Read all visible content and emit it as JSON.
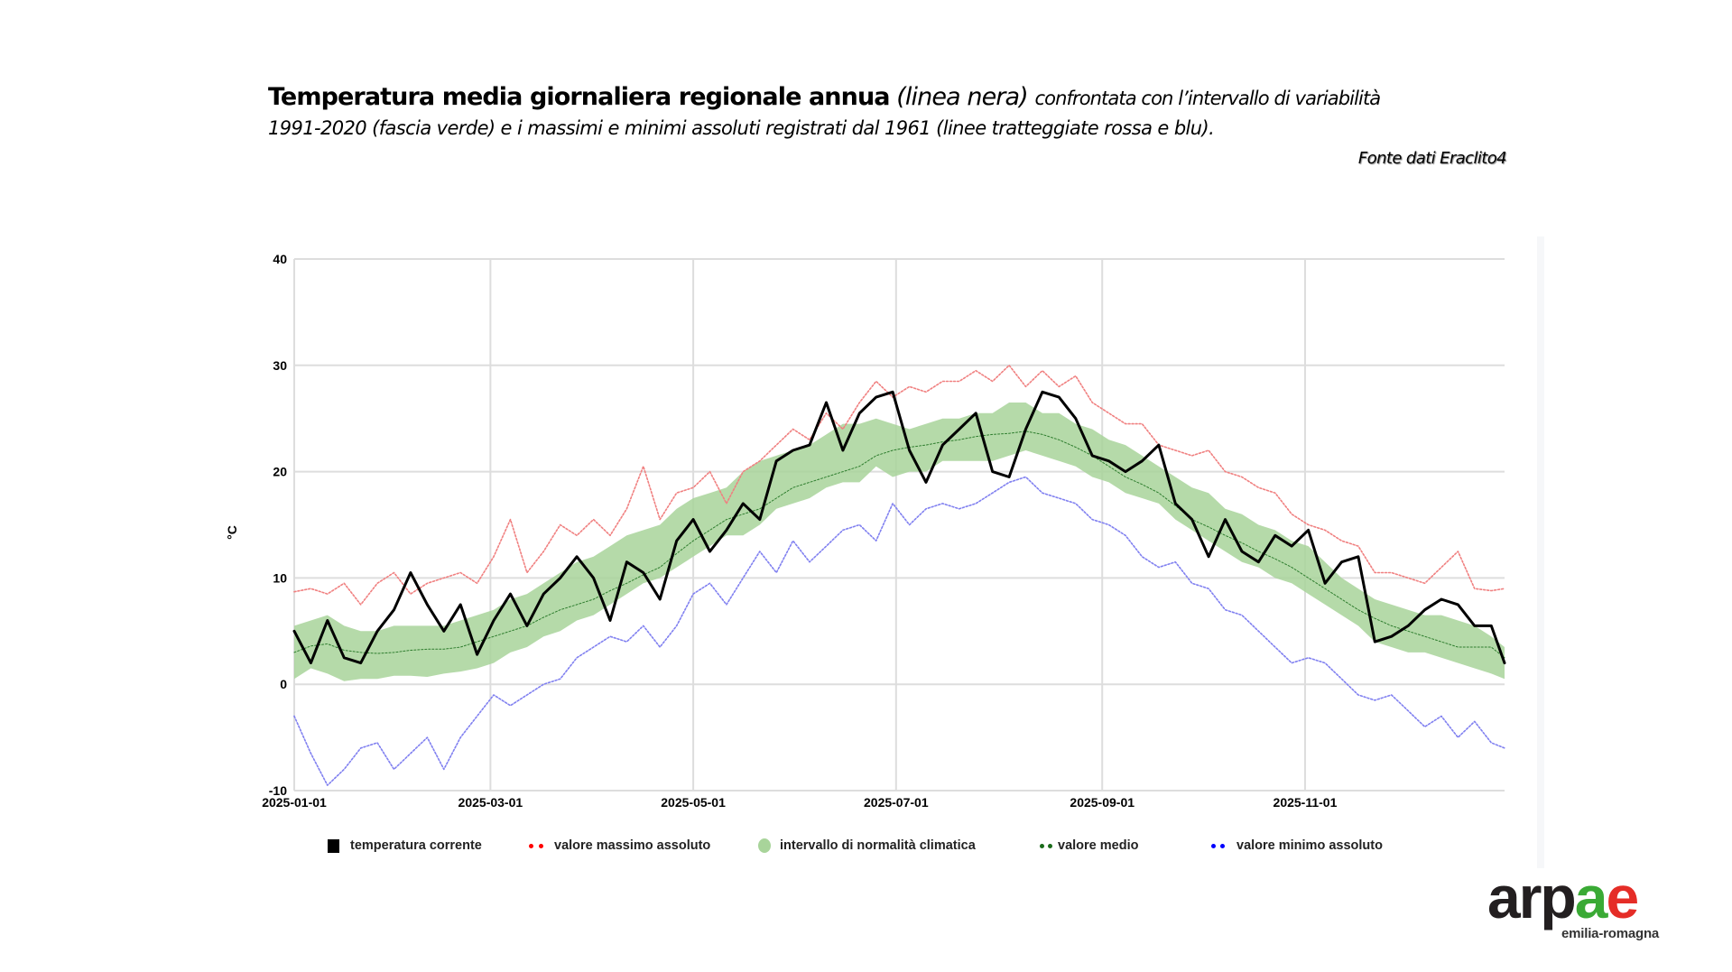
{
  "header": {
    "title_bold": "Temperatura media giornaliera regionale annua",
    "title_italic": "(linea nera)",
    "title_rest": "confrontata con l’intervallo di variabilità",
    "title_line2": "1991-2020 (fascia verde) e i massimi e minimi assoluti registrati dal 1961 (linee tratteggiate rossa e blu).",
    "source": "Fonte dati Eraclito4"
  },
  "logo": {
    "part1": "arp",
    "part2": "a",
    "part3": "e",
    "subtitle": "emilia-romagna",
    "colors": {
      "dark": "#231f20",
      "green": "#3aaa35",
      "red": "#e52d27"
    }
  },
  "colors": {
    "current": "#000000",
    "max": "#f08080",
    "min": "#8080f0",
    "band": "#a8d49a",
    "mean": "#2e7d2e",
    "grid": "#dddddd",
    "max_legend": "#ff0000",
    "min_legend": "#0000ff",
    "mean_legend": "#1a6b1a"
  },
  "chart_data": {
    "type": "line",
    "title": "Temperatura media giornaliera regionale annua",
    "xlabel": "",
    "ylabel": "°C",
    "x_unit": "day of year 2025 (0 = 2025-01-01)",
    "xlim": [
      0,
      364
    ],
    "ylim": [
      -10,
      40
    ],
    "yticks": [
      40,
      30,
      20,
      10,
      0,
      -10
    ],
    "xticks": [
      {
        "day": 0,
        "label": "2025-01-01"
      },
      {
        "day": 59,
        "label": "2025-03-01"
      },
      {
        "day": 120,
        "label": "2025-05-01"
      },
      {
        "day": 181,
        "label": "2025-07-01"
      },
      {
        "day": 243,
        "label": "2025-09-01"
      },
      {
        "day": 304,
        "label": "2025-11-01"
      }
    ],
    "grid": true,
    "legend_position": "bottom",
    "x": [
      0,
      5,
      10,
      15,
      20,
      25,
      30,
      35,
      40,
      45,
      50,
      55,
      60,
      65,
      70,
      75,
      80,
      85,
      90,
      95,
      100,
      105,
      110,
      115,
      120,
      125,
      130,
      135,
      140,
      145,
      150,
      155,
      160,
      165,
      170,
      175,
      180,
      185,
      190,
      195,
      200,
      205,
      210,
      215,
      220,
      225,
      230,
      235,
      240,
      245,
      250,
      255,
      260,
      265,
      270,
      275,
      280,
      285,
      290,
      295,
      300,
      305,
      310,
      315,
      320,
      325,
      330,
      335,
      340,
      345,
      350,
      355,
      360,
      364
    ],
    "series": [
      {
        "key": "band",
        "name": "intervallo di normalità climatica",
        "low": [
          0.5,
          1.5,
          1.0,
          0.3,
          0.5,
          0.5,
          0.8,
          0.8,
          0.7,
          1.0,
          1.2,
          1.5,
          2.0,
          3.0,
          3.5,
          4.5,
          5.0,
          6.0,
          6.5,
          7.5,
          8.5,
          9.5,
          10.0,
          11.0,
          12.0,
          13.0,
          14.0,
          14.0,
          15.0,
          16.5,
          17.0,
          17.5,
          18.5,
          19.0,
          19.0,
          20.5,
          19.5,
          20.0,
          20.0,
          21.0,
          21.0,
          21.0,
          21.0,
          21.5,
          22.0,
          21.5,
          21.0,
          20.5,
          19.5,
          19.0,
          18.0,
          17.5,
          17.0,
          15.5,
          14.5,
          13.5,
          12.5,
          11.5,
          11.0,
          10.0,
          9.5,
          8.5,
          7.5,
          6.5,
          5.5,
          4.0,
          3.5,
          3.0,
          3.0,
          2.5,
          2.0,
          1.5,
          1.0,
          0.5
        ],
        "high": [
          5.5,
          6.0,
          6.5,
          5.5,
          5.0,
          5.0,
          5.5,
          5.5,
          5.5,
          5.5,
          6.0,
          6.5,
          7.0,
          8.0,
          8.5,
          9.5,
          10.5,
          11.5,
          12.0,
          13.0,
          14.0,
          14.5,
          15.0,
          16.5,
          17.5,
          18.0,
          18.5,
          20.0,
          21.0,
          21.5,
          22.0,
          22.5,
          23.5,
          24.5,
          24.5,
          25.0,
          24.5,
          24.0,
          24.5,
          25.0,
          25.0,
          25.5,
          25.5,
          26.5,
          26.5,
          25.5,
          25.5,
          24.5,
          24.0,
          23.0,
          22.5,
          21.5,
          20.5,
          19.5,
          18.5,
          18.0,
          16.5,
          16.0,
          15.0,
          14.5,
          13.5,
          13.0,
          11.5,
          10.0,
          9.0,
          8.0,
          7.5,
          7.0,
          6.5,
          6.5,
          6.0,
          5.5,
          4.5,
          3.5
        ]
      },
      {
        "key": "mean",
        "name": "valore medio",
        "values": [
          3.0,
          3.6,
          3.8,
          3.2,
          3.0,
          2.9,
          3.0,
          3.2,
          3.3,
          3.3,
          3.5,
          4.0,
          4.5,
          5.0,
          5.5,
          6.3,
          7.0,
          7.5,
          8.0,
          8.8,
          9.5,
          10.3,
          11.0,
          12.3,
          13.5,
          14.5,
          15.5,
          16.0,
          16.5,
          17.5,
          18.5,
          19.0,
          19.5,
          20.0,
          20.5,
          21.5,
          22.0,
          22.3,
          22.5,
          22.8,
          23.0,
          23.3,
          23.5,
          23.6,
          23.8,
          23.5,
          23.0,
          22.3,
          21.5,
          20.5,
          19.5,
          18.8,
          18.0,
          16.8,
          15.5,
          14.8,
          14.0,
          13.3,
          12.5,
          11.8,
          11.0,
          10.0,
          9.0,
          8.0,
          7.0,
          6.2,
          5.5,
          5.0,
          4.5,
          4.0,
          3.5,
          3.5,
          3.5,
          2.5
        ]
      },
      {
        "key": "max",
        "name": "valore massimo assoluto",
        "values": [
          8.7,
          9.0,
          8.5,
          9.5,
          7.5,
          9.5,
          10.5,
          8.5,
          9.5,
          10.0,
          10.5,
          9.5,
          12.0,
          15.5,
          10.5,
          12.5,
          15.0,
          14.0,
          15.5,
          14.0,
          16.5,
          20.5,
          15.5,
          18.0,
          18.5,
          20.0,
          17.0,
          20.0,
          21.0,
          22.5,
          24.0,
          23.0,
          25.5,
          24.0,
          26.5,
          28.5,
          27.0,
          28.0,
          27.5,
          28.5,
          28.5,
          29.5,
          28.5,
          30.0,
          28.0,
          29.5,
          28.0,
          29.0,
          26.5,
          25.5,
          24.5,
          24.5,
          22.5,
          22.0,
          21.5,
          22.0,
          20.0,
          19.5,
          18.5,
          18.0,
          16.0,
          15.0,
          14.5,
          13.5,
          13.0,
          10.5,
          10.5,
          10.0,
          9.5,
          11.0,
          12.5,
          9.0,
          8.8,
          9.0
        ]
      },
      {
        "key": "min",
        "name": "valore minimo assoluto",
        "values": [
          -3.0,
          -6.5,
          -9.5,
          -8.0,
          -6.0,
          -5.5,
          -8.0,
          -6.5,
          -5.0,
          -8.0,
          -5.0,
          -3.0,
          -1.0,
          -2.0,
          -1.0,
          0.0,
          0.5,
          2.5,
          3.5,
          4.5,
          4.0,
          5.5,
          3.5,
          5.5,
          8.5,
          9.5,
          7.5,
          10.0,
          12.5,
          10.5,
          13.5,
          11.5,
          13.0,
          14.5,
          15.0,
          13.5,
          17.0,
          15.0,
          16.5,
          17.0,
          16.5,
          17.0,
          18.0,
          19.0,
          19.5,
          18.0,
          17.5,
          17.0,
          15.5,
          15.0,
          14.0,
          12.0,
          11.0,
          11.5,
          9.5,
          9.0,
          7.0,
          6.5,
          5.0,
          3.5,
          2.0,
          2.5,
          2.0,
          0.5,
          -1.0,
          -1.5,
          -1.0,
          -2.5,
          -4.0,
          -3.0,
          -5.0,
          -3.5,
          -5.5,
          -6.0
        ]
      },
      {
        "key": "current",
        "name": "temperatura corrente",
        "values": [
          5.0,
          2.0,
          6.0,
          2.5,
          2.0,
          5.0,
          7.0,
          10.5,
          7.5,
          5.0,
          7.5,
          2.8,
          6.0,
          8.5,
          5.5,
          8.5,
          10.0,
          12.0,
          10.0,
          6.0,
          11.5,
          10.5,
          8.0,
          13.5,
          15.5,
          12.5,
          14.5,
          17.0,
          15.5,
          21.0,
          22.0,
          22.5,
          26.5,
          22.0,
          25.5,
          27.0,
          27.5,
          22.0,
          19.0,
          22.5,
          24.0,
          25.5,
          20.0,
          19.5,
          24.0,
          27.5,
          27.0,
          25.0,
          21.5,
          21.0,
          20.0,
          21.0,
          22.5,
          17.0,
          15.5,
          12.0,
          15.5,
          12.5,
          11.5,
          14.0,
          13.0,
          14.5,
          9.5,
          11.5,
          12.0,
          4.0,
          4.5,
          5.5,
          7.0,
          8.0,
          7.5,
          5.5,
          5.5,
          2.0
        ]
      }
    ],
    "legend": [
      {
        "key": "current",
        "label": "temperatura corrente"
      },
      {
        "key": "max",
        "label": "valore massimo assoluto"
      },
      {
        "key": "band",
        "label": "intervallo di normalità climatica"
      },
      {
        "key": "mean",
        "label": "valore medio"
      },
      {
        "key": "min",
        "label": "valore minimo assoluto"
      }
    ]
  }
}
